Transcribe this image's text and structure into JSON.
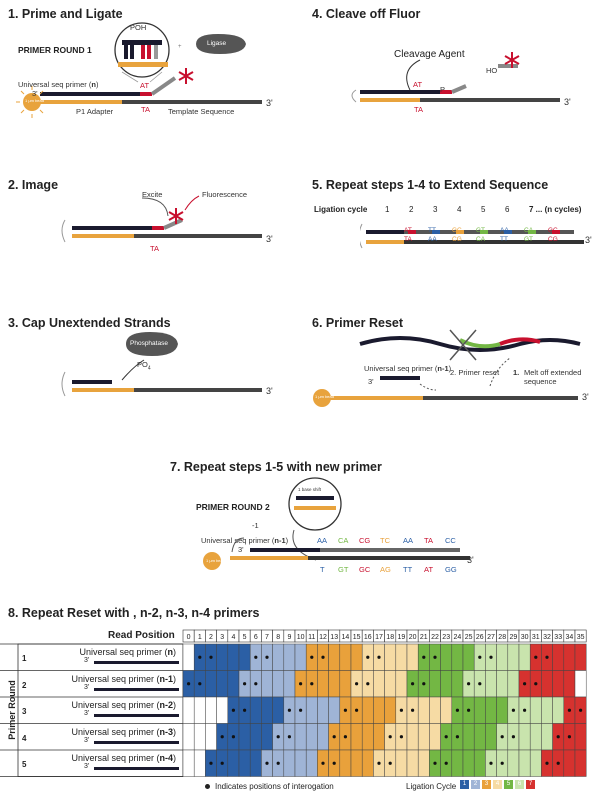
{
  "colors": {
    "cycle1": "#2b5fa5",
    "cycle2": "#9fb4d6",
    "cycle3": "#e9a13b",
    "cycle4": "#f6dba4",
    "cycle5": "#73b744",
    "cycle6": "#c9e4ad",
    "cycle7": "#d6322f",
    "orange": "#e8a33d",
    "dark": "#333333",
    "red": "#c8102e"
  },
  "steps": {
    "s1": {
      "title": "1. Prime and Ligate",
      "round": "PRIMER ROUND 1",
      "poh": "POH",
      "ligase": "Ligase",
      "primer": "Universal seq primer (",
      "primer_n": "n",
      ")": ")",
      "at": "AT",
      "ta": "TA",
      "p1": "P1 Adapter",
      "template": "Template Sequence",
      "bead": "1 μm bead",
      "three": "3'",
      "three2": "3'"
    },
    "s2": {
      "title": "2. Image",
      "excite": "Excite",
      "fluor": "Fluorescence",
      "ta": "TA",
      "three": "3'"
    },
    "s3": {
      "title": "3. Cap Unextended Strands",
      "phos": "Phosphatase",
      "po": "PO",
      "po_sub": "4",
      "three": "3'"
    },
    "s4": {
      "title": "4. Cleave off Fluor",
      "agent": "Cleavage Agent",
      "ho": "HO",
      "at": "AT",
      "p": "P",
      "ta": "TA",
      "three": "3'"
    },
    "s5": {
      "title": "5. Repeat steps 1-4 to Extend Sequence",
      "cycle_label": "Ligation cycle",
      "cycles": [
        "1",
        "2",
        "3",
        "4",
        "5",
        "6",
        "7 ... (n cycles)"
      ],
      "top": [
        "AT",
        "TT",
        "GC",
        "GT",
        "AA",
        "CA",
        "GC"
      ],
      "bot": [
        "TA",
        "AA",
        "CG",
        "CA",
        "TT",
        "GT",
        "CG"
      ],
      "three": "3'"
    },
    "s6": {
      "title": "6. Primer Reset",
      "primer": "Universal seq primer (",
      "primer_n": "n-1",
      ")": ")",
      "reset": "2.  Primer reset",
      "melt_num": "1.",
      "melt": "Melt off extended sequence",
      "three": "3'",
      "three2": "3'",
      "bead": "1 μm bead"
    },
    "s7": {
      "title": "7. Repeat steps 1-5 with new primer",
      "round": "PRIMER ROUND 2",
      "shift": "1 base shift",
      "minus": "-1",
      "primer": "Universal seq primer (",
      "primer_n": "n-1",
      ")": ")",
      "top": [
        "AA",
        "CA",
        "CG",
        "TC",
        "AA",
        "TA",
        "CC"
      ],
      "bot": [
        "T",
        "GT",
        "GC",
        "AG",
        "TT",
        "AT",
        "GG"
      ],
      "three": "3'",
      "three2": "3'",
      "bead": "1 μm bead"
    },
    "s8": {
      "title": "8. Repeat Reset with , n-2, n-3, n-4 primers",
      "read_position": "Read Position",
      "axis": "Primer Round",
      "legend_note": "Indicates positions of interogation",
      "legend_cycle": "Ligation Cycle",
      "legend_nums": [
        "1",
        "2",
        "3",
        "4",
        "5",
        "6",
        "7"
      ]
    }
  },
  "rounds": [
    {
      "num": "1",
      "label": "Universal seq primer (",
      "n": "n",
      "close": ")",
      "three": "3'"
    },
    {
      "num": "2",
      "label": "Universal seq primer (",
      "n": "n-1",
      "close": ")",
      "three": "3'"
    },
    {
      "num": "3",
      "label": "Universal seq primer (",
      "n": "n-2",
      "close": ")",
      "three": "3'"
    },
    {
      "num": "4",
      "label": "Universal seq primer (",
      "n": "n-3",
      "close": ")",
      "three": "3'"
    },
    {
      "num": "5",
      "label": "Universal seq primer (",
      "n": "n-4",
      "close": ")",
      "three": "3'"
    }
  ],
  "chart_data": {
    "type": "heatmap",
    "title": "8. Repeat Reset with , n-2, n-3, n-4 primers",
    "xlabel": "Read Position",
    "ylabel": "Primer Round",
    "positions": [
      "0",
      "1",
      "2",
      "3",
      "4",
      "5",
      "6",
      "7",
      "8",
      "9",
      "10",
      "11",
      "12",
      "13",
      "14",
      "15",
      "16",
      "17",
      "18",
      "19",
      "20",
      "21",
      "22",
      "23",
      "24",
      "25",
      "26",
      "27",
      "28",
      "29",
      "30",
      "31",
      "32",
      "33",
      "34",
      "35"
    ],
    "rows": [
      {
        "round": "1",
        "start": 1,
        "interrogated": [
          1,
          2,
          6,
          7,
          11,
          12,
          16,
          17,
          21,
          22,
          26,
          27,
          31,
          32
        ]
      },
      {
        "round": "2",
        "start": 0,
        "interrogated": [
          0,
          1,
          5,
          6,
          10,
          11,
          15,
          16,
          20,
          21,
          25,
          26,
          30,
          31
        ]
      },
      {
        "round": "3",
        "start": 4,
        "interrogated": [
          4,
          5,
          9,
          10,
          14,
          15,
          19,
          20,
          24,
          25,
          29,
          30,
          34,
          35
        ]
      },
      {
        "round": "4",
        "start": 3,
        "interrogated": [
          3,
          4,
          8,
          9,
          13,
          14,
          18,
          19,
          23,
          24,
          28,
          29,
          33,
          34
        ]
      },
      {
        "round": "5",
        "start": 2,
        "interrogated": [
          2,
          3,
          7,
          8,
          12,
          13,
          17,
          18,
          22,
          23,
          27,
          28,
          32,
          33
        ]
      }
    ],
    "cell_rule": "each primer round fills consecutive blocks of 5 positions colored by ligation cycle 1..7 starting at start position"
  }
}
